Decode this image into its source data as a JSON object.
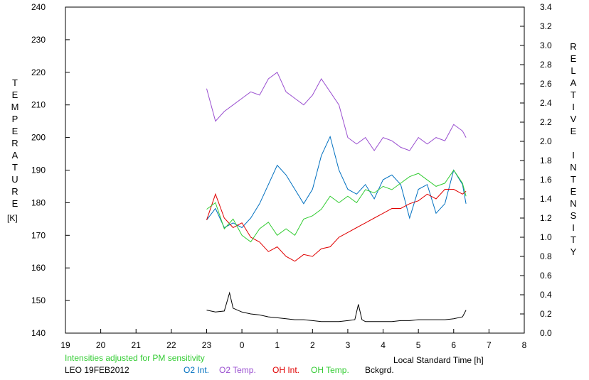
{
  "chart_data": {
    "type": "line",
    "xlabel": "Local Standard Time [h]",
    "ylabel_left": "TEMPERATURE",
    "ylabel_left_unit": "[K]",
    "ylabel_right": "RELATIVE INTENSITY",
    "x_ticks": [
      "19",
      "20",
      "21",
      "22",
      "23",
      "0",
      "1",
      "2",
      "3",
      "4",
      "5",
      "6",
      "7",
      "8"
    ],
    "xlim": [
      19,
      32
    ],
    "ylim_left": [
      140,
      240
    ],
    "y_ticks_left": [
      "140",
      "150",
      "160",
      "170",
      "180",
      "190",
      "200",
      "210",
      "220",
      "230",
      "240"
    ],
    "ylim_right": [
      0.0,
      3.4
    ],
    "y_ticks_right": [
      "0.0",
      "0.2",
      "0.4",
      "0.6",
      "0.8",
      "1.0",
      "1.2",
      "1.4",
      "1.6",
      "1.8",
      "2.0",
      "2.2",
      "2.4",
      "2.6",
      "2.8",
      "3.0",
      "3.2",
      "3.4"
    ],
    "note": "Intensities adjusted for PM sensitivity",
    "station_label": "LEO 19FEB2012",
    "grid": false,
    "legend_position": "bottom",
    "series": [
      {
        "name": "O2 Int.",
        "axis": "right",
        "color": "#0070c0",
        "x": [
          23.0,
          23.25,
          23.5,
          23.75,
          24.0,
          24.25,
          24.5,
          24.75,
          25.0,
          25.25,
          25.5,
          25.75,
          26.0,
          26.25,
          26.5,
          26.75,
          27.0,
          27.25,
          27.5,
          27.75,
          28.0,
          28.25,
          28.5,
          28.75,
          29.0,
          29.25,
          29.5,
          29.75,
          30.0,
          30.25,
          30.35
        ],
        "y": [
          1.18,
          1.3,
          1.1,
          1.15,
          1.1,
          1.2,
          1.35,
          1.55,
          1.75,
          1.65,
          1.5,
          1.35,
          1.5,
          1.85,
          2.05,
          1.7,
          1.5,
          1.45,
          1.55,
          1.4,
          1.6,
          1.65,
          1.55,
          1.2,
          1.5,
          1.55,
          1.25,
          1.35,
          1.7,
          1.55,
          1.35
        ]
      },
      {
        "name": "O2 Temp.",
        "axis": "left",
        "color": "#9a4fd0",
        "x": [
          23.0,
          23.25,
          23.5,
          23.75,
          24.0,
          24.25,
          24.5,
          24.75,
          25.0,
          25.25,
          25.5,
          25.75,
          26.0,
          26.25,
          26.5,
          26.75,
          27.0,
          27.25,
          27.5,
          27.75,
          28.0,
          28.25,
          28.5,
          28.75,
          29.0,
          29.25,
          29.5,
          29.75,
          30.0,
          30.25,
          30.35
        ],
        "y": [
          215,
          205,
          208,
          210,
          212,
          214,
          213,
          218,
          220,
          214,
          212,
          210,
          213,
          218,
          214,
          210,
          200,
          198,
          200,
          196,
          200,
          199,
          197,
          196,
          200,
          198,
          200,
          199,
          204,
          202,
          200
        ]
      },
      {
        "name": "OH Int.",
        "axis": "right",
        "color": "#e00000",
        "x": [
          23.0,
          23.25,
          23.5,
          23.75,
          24.0,
          24.25,
          24.5,
          24.75,
          25.0,
          25.25,
          25.5,
          25.75,
          26.0,
          26.25,
          26.5,
          26.75,
          27.0,
          27.25,
          27.5,
          27.75,
          28.0,
          28.25,
          28.5,
          28.75,
          29.0,
          29.25,
          29.5,
          29.75,
          30.0,
          30.25,
          30.35
        ],
        "y": [
          1.18,
          1.45,
          1.2,
          1.1,
          1.15,
          1.0,
          0.95,
          0.85,
          0.9,
          0.8,
          0.75,
          0.82,
          0.8,
          0.88,
          0.9,
          1.0,
          1.05,
          1.1,
          1.15,
          1.2,
          1.25,
          1.3,
          1.3,
          1.35,
          1.38,
          1.45,
          1.4,
          1.5,
          1.5,
          1.45,
          1.48
        ]
      },
      {
        "name": "OH Temp.",
        "axis": "left",
        "color": "#33cc33",
        "x": [
          23.0,
          23.25,
          23.5,
          23.75,
          24.0,
          24.25,
          24.5,
          24.75,
          25.0,
          25.25,
          25.5,
          25.75,
          26.0,
          26.25,
          26.5,
          26.75,
          27.0,
          27.25,
          27.5,
          27.75,
          28.0,
          28.25,
          28.5,
          28.75,
          29.0,
          29.25,
          29.5,
          29.75,
          30.0,
          30.25,
          30.35
        ],
        "y": [
          178,
          180,
          172,
          175,
          170,
          168,
          172,
          174,
          170,
          172,
          170,
          175,
          176,
          178,
          182,
          180,
          182,
          180,
          184,
          183,
          185,
          184,
          186,
          188,
          189,
          187,
          185,
          186,
          190,
          186,
          182
        ]
      },
      {
        "name": "Bckgrd.",
        "axis": "right",
        "color": "#000000",
        "x": [
          23.0,
          23.25,
          23.5,
          23.65,
          23.75,
          24.0,
          24.25,
          24.5,
          24.75,
          25.0,
          25.25,
          25.5,
          25.75,
          26.0,
          26.25,
          26.5,
          26.75,
          27.0,
          27.2,
          27.3,
          27.4,
          27.5,
          27.75,
          28.0,
          28.25,
          28.5,
          28.75,
          29.0,
          29.25,
          29.5,
          29.75,
          30.0,
          30.25,
          30.35
        ],
        "y": [
          0.24,
          0.22,
          0.23,
          0.42,
          0.26,
          0.22,
          0.2,
          0.19,
          0.17,
          0.16,
          0.15,
          0.14,
          0.14,
          0.13,
          0.12,
          0.12,
          0.12,
          0.13,
          0.14,
          0.3,
          0.14,
          0.12,
          0.12,
          0.12,
          0.12,
          0.13,
          0.13,
          0.14,
          0.14,
          0.14,
          0.14,
          0.15,
          0.17,
          0.24
        ]
      }
    ]
  }
}
